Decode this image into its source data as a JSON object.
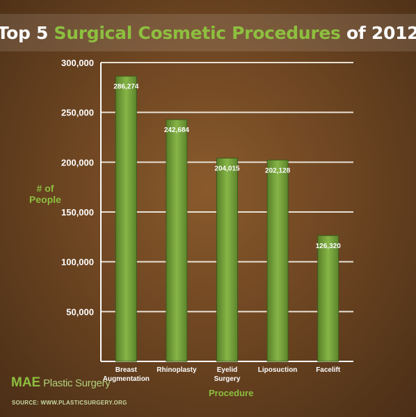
{
  "title": {
    "part1": "Top 5 ",
    "highlight": "Surgical Cosmetic Procedures",
    "part2": " of 2012"
  },
  "logo": {
    "brand": "MAE",
    "sub": " Plastic Surgery"
  },
  "source": "SOURCE: WWW.PLASTICSURGERY.ORG",
  "colors": {
    "accent": "#8dbf3f",
    "bar": "#6f9a34",
    "background": "#6e4622"
  },
  "chart_data": {
    "type": "bar",
    "xlabel": "Procedure",
    "ylabel": "# of People",
    "ylim": [
      0,
      300000
    ],
    "yticks": [
      50000,
      100000,
      150000,
      200000,
      250000,
      300000
    ],
    "ytick_labels": [
      "50,000",
      "100,000",
      "150,000",
      "200,000",
      "250,000",
      "300,000"
    ],
    "grid": true,
    "categories": [
      [
        "Breast",
        "Augmentation"
      ],
      [
        "Rhinoplasty"
      ],
      [
        "Eyelid",
        "Surgery"
      ],
      [
        "Liposuction"
      ],
      [
        "Facelift"
      ]
    ],
    "values": [
      286274,
      242684,
      204015,
      202128,
      126320
    ],
    "data_labels": [
      "286,274",
      "242,684",
      "204,015",
      "202,128",
      "126,320"
    ]
  }
}
